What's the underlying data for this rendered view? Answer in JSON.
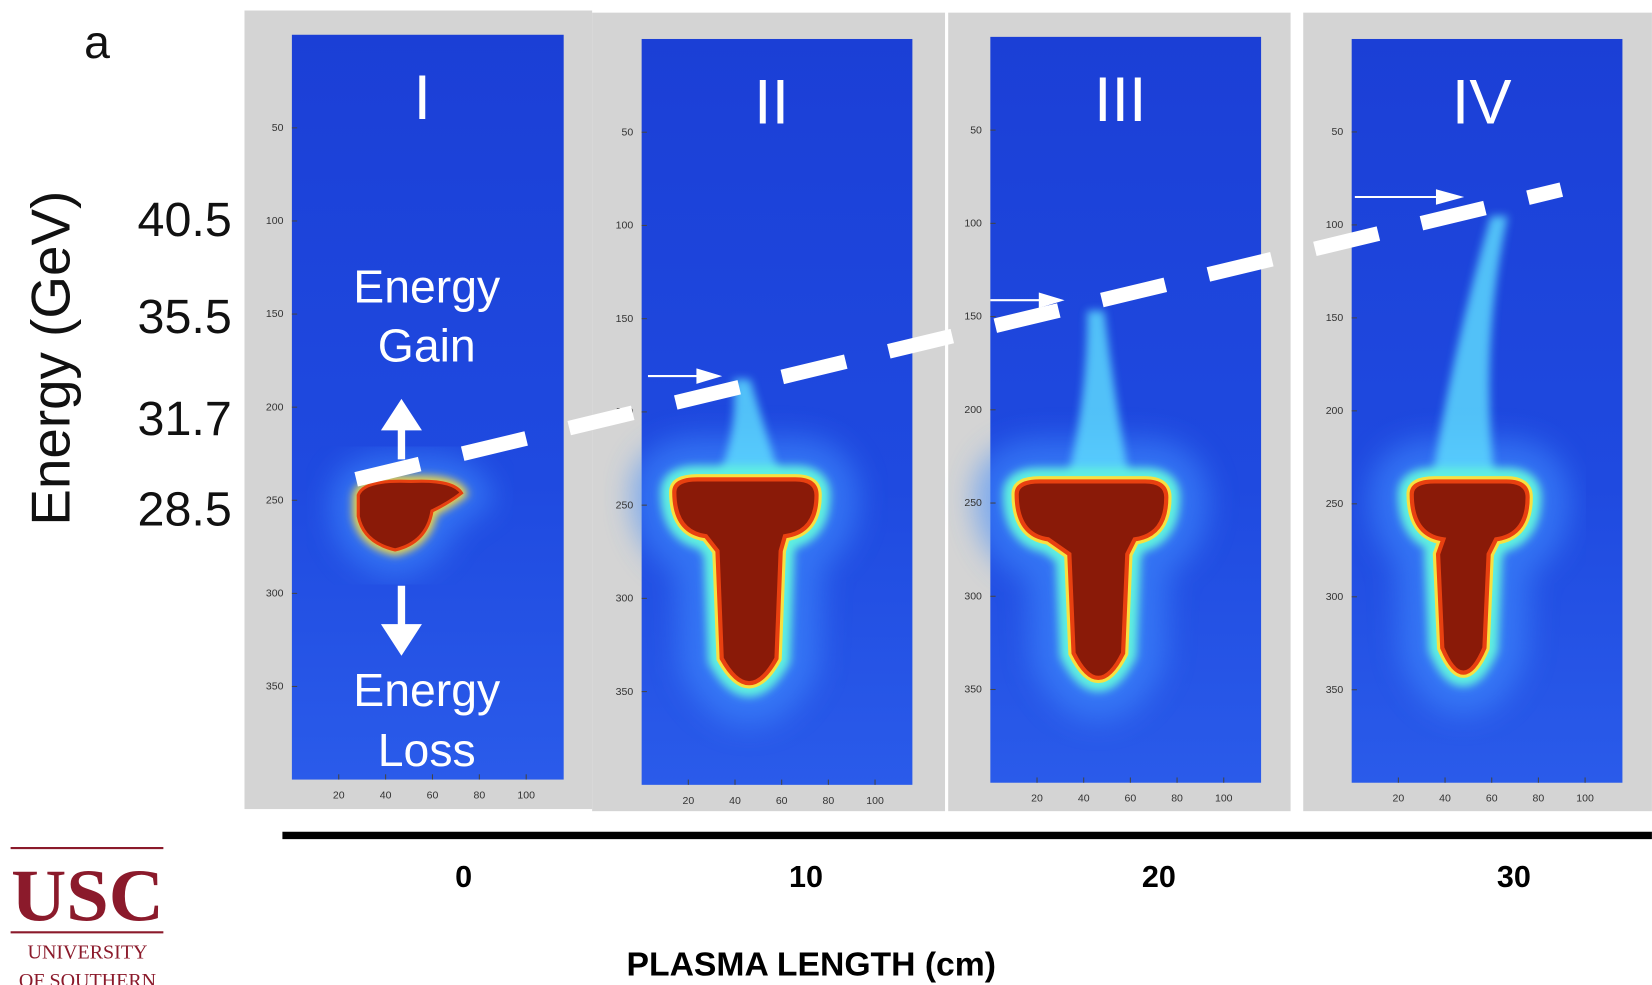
{
  "corner_letter": "a",
  "y_axis_label": "Energy (GeV)",
  "energy_labels": [
    "40.5",
    "35.5",
    "31.7",
    "28.5"
  ],
  "panels": [
    {
      "label": "I"
    },
    {
      "label": "II"
    },
    {
      "label": "III"
    },
    {
      "label": "IV"
    }
  ],
  "pixel_yticks": [
    50,
    100,
    150,
    200,
    250,
    300,
    350
  ],
  "pixel_xticks": [
    20,
    40,
    60,
    80,
    100
  ],
  "annotations": {
    "gain": [
      "Energy",
      "Gain"
    ],
    "loss": [
      "Energy",
      "Loss"
    ]
  },
  "plasma_lengths": [
    0,
    10,
    20,
    30
  ],
  "x_axis_label": "PLASMA LENGTH (cm)",
  "logo": {
    "mark": "USC",
    "line1": "UNIVERSITY",
    "line2": "OF SOUTHERN"
  }
}
